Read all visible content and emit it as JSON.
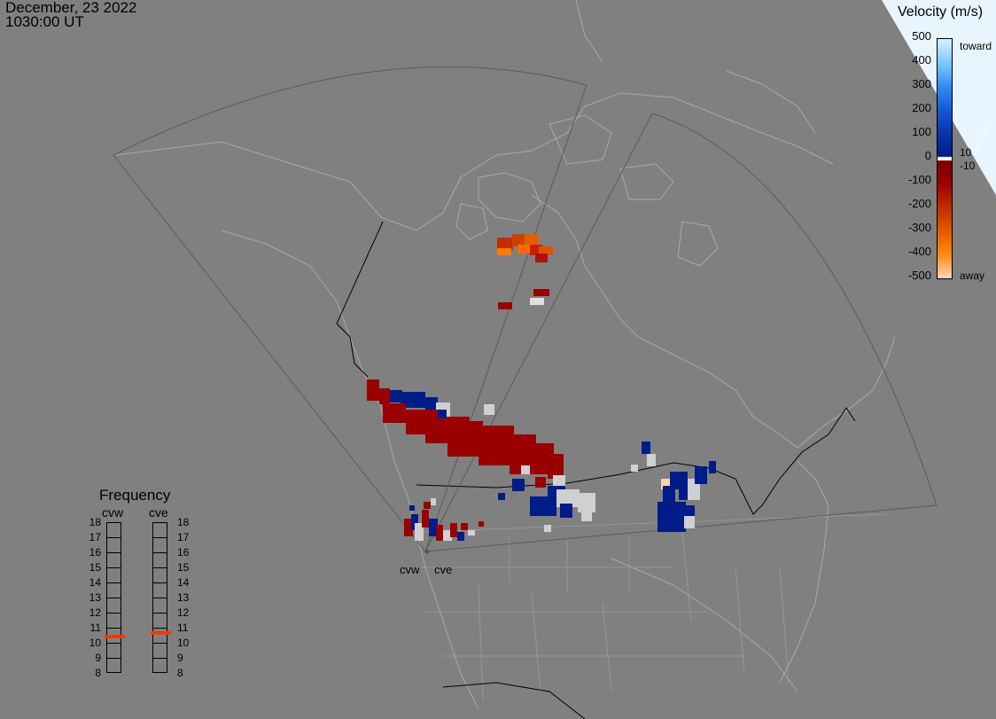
{
  "timestamp": {
    "date": "December, 23 2022",
    "time": "1030:00 UT"
  },
  "colorbar": {
    "title": "Velocity (m/s)",
    "ticks": [
      "500",
      "400",
      "300",
      "200",
      "100",
      "10",
      "0",
      "-10",
      "-100",
      "-200",
      "-300",
      "-400",
      "-500"
    ],
    "toward_label": "toward",
    "away_label": "away",
    "colors": [
      "#ffffff",
      "#cfeeff",
      "#8fd6ff",
      "#3aa3ff",
      "#1e64e8",
      "#0a37b4",
      "#001c88",
      "#6b0000",
      "#9a0000",
      "#c02a00",
      "#e05a00",
      "#ff8a10",
      "#ffc890",
      "#fff0e0"
    ]
  },
  "radars": [
    {
      "code": "cvw",
      "label": "cvw"
    },
    {
      "code": "cve",
      "label": "cve"
    }
  ],
  "frequency": {
    "title": "Frequency",
    "columns": [
      "cvw",
      "cve"
    ],
    "levels": [
      "18",
      "17",
      "16",
      "15",
      "14",
      "13",
      "12",
      "11",
      "10",
      "9",
      "8"
    ],
    "cvw_mhz": 10.5,
    "cve_mhz": 10.7,
    "marker_color": "#ee3a0a"
  },
  "map": {
    "background": "#808080",
    "coast_color": "#a9a9a9",
    "border_color": "#000000",
    "fov_color": "#5a5a5a",
    "colors": {
      "toward_strong": "#001c88",
      "toward_light": "#d0d0d0",
      "away_strong": "#9a0000",
      "away_mid": "#e05000",
      "away_orange": "#ff7a00"
    }
  }
}
